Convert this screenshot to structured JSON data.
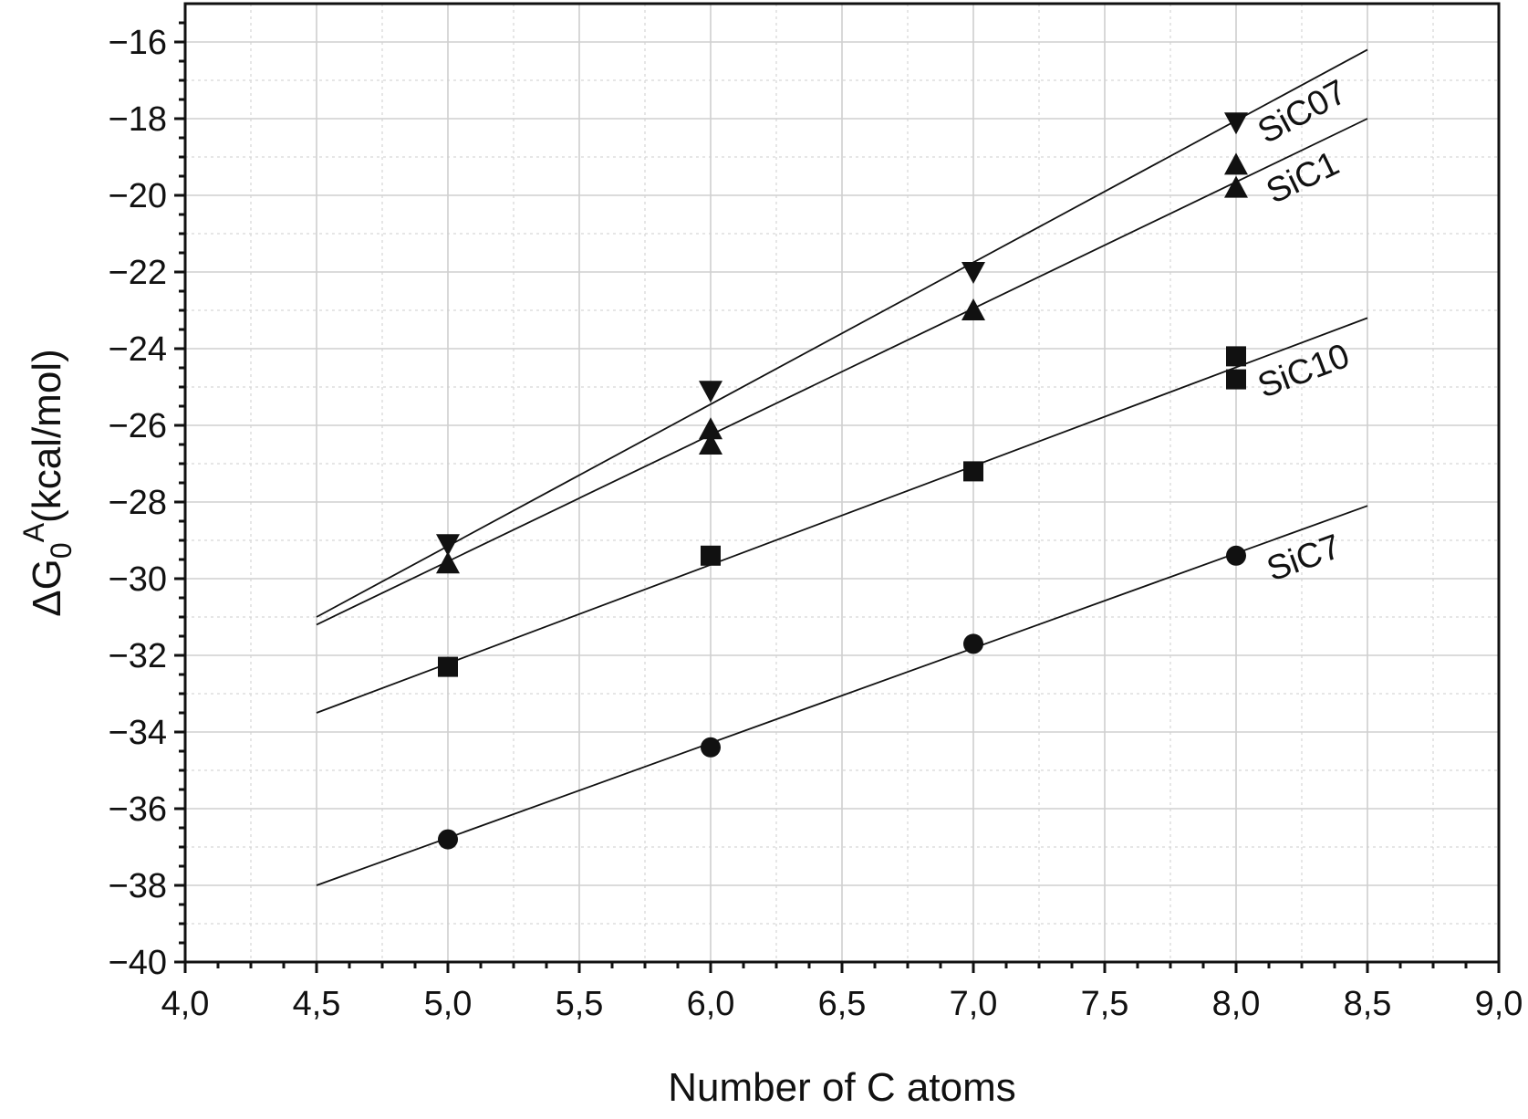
{
  "chart_data": {
    "type": "scatter",
    "title": "",
    "xlabel": "Number of C atoms",
    "ylabel": {
      "prefix": "ΔG",
      "subscript": "0",
      "superscript": "A",
      "suffix": "(kcal/mol)"
    },
    "xlim": [
      4.0,
      9.0
    ],
    "ylim": [
      -40,
      -15
    ],
    "x_ticks": [
      4.0,
      4.5,
      5.0,
      5.5,
      6.0,
      6.5,
      7.0,
      7.5,
      8.0,
      8.5,
      9.0
    ],
    "x_tick_labels": [
      "4,0",
      "4,5",
      "5,0",
      "5,5",
      "6,0",
      "6,5",
      "7,0",
      "7,5",
      "8,0",
      "8,5",
      "9,0"
    ],
    "y_ticks": [
      -40,
      -38,
      -36,
      -34,
      -32,
      -30,
      -28,
      -26,
      -24,
      -22,
      -20,
      -18,
      -16
    ],
    "y_tick_labels": [
      "−40",
      "−38",
      "−36",
      "−34",
      "−32",
      "−30",
      "−28",
      "−26",
      "−24",
      "−22",
      "−20",
      "−18",
      "−16"
    ],
    "grid": true,
    "legend": "none (series labelled inline at line ends)",
    "series": [
      {
        "name": "SiC07",
        "marker": "triangle-down",
        "points": [
          [
            5,
            -29.1
          ],
          [
            6,
            -25.1
          ],
          [
            7,
            -22.0
          ],
          [
            8,
            -18.1
          ]
        ],
        "fit": {
          "x": [
            4.5,
            8.5
          ],
          "y": [
            -31.0,
            -16.2
          ]
        }
      },
      {
        "name": "SiC1",
        "marker": "triangle-up",
        "points": [
          [
            5,
            -29.6
          ],
          [
            6,
            -26.1
          ],
          [
            6,
            -26.5
          ],
          [
            7,
            -23.0
          ],
          [
            8,
            -19.2
          ],
          [
            8,
            -19.8
          ]
        ],
        "fit": {
          "x": [
            4.5,
            8.5
          ],
          "y": [
            -31.2,
            -18.0
          ]
        }
      },
      {
        "name": "SiC10",
        "marker": "square",
        "points": [
          [
            5,
            -32.3
          ],
          [
            6,
            -29.4
          ],
          [
            7,
            -27.2
          ],
          [
            8,
            -24.2
          ],
          [
            8,
            -24.8
          ]
        ],
        "fit": {
          "x": [
            4.5,
            8.5
          ],
          "y": [
            -33.5,
            -23.2
          ]
        }
      },
      {
        "name": "SiC7",
        "marker": "circle",
        "points": [
          [
            5,
            -36.8
          ],
          [
            6,
            -34.4
          ],
          [
            7,
            -31.7
          ],
          [
            8,
            -29.4
          ]
        ],
        "fit": {
          "x": [
            4.5,
            8.5
          ],
          "y": [
            -38.0,
            -28.1
          ]
        }
      }
    ]
  }
}
